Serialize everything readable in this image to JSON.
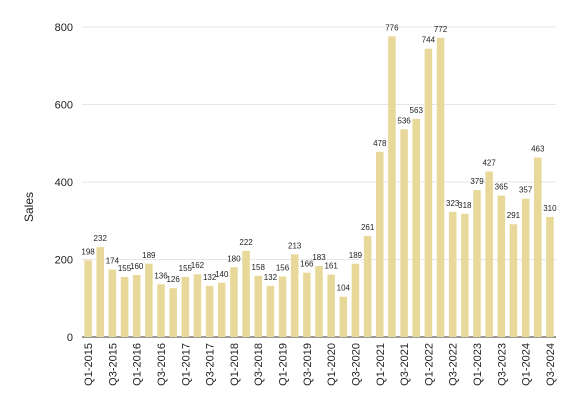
{
  "chart_data": {
    "type": "bar",
    "title": "",
    "xlabel": "",
    "ylabel": "Sales",
    "ylim": [
      0,
      800
    ],
    "yticks": [
      0,
      200,
      400,
      600,
      800
    ],
    "grid": true,
    "bar_color": "#e8d99a",
    "categories": [
      "Q1-2015",
      "Q2-2015",
      "Q3-2015",
      "Q4-2015",
      "Q1-2016",
      "Q2-2016",
      "Q3-2016",
      "Q4-2016",
      "Q1-2017",
      "Q2-2017",
      "Q3-2017",
      "Q4-2017",
      "Q1-2018",
      "Q2-2018",
      "Q3-2018",
      "Q4-2018",
      "Q1-2019",
      "Q2-2019",
      "Q3-2019",
      "Q4-2019",
      "Q1-2020",
      "Q2-2020",
      "Q3-2020",
      "Q4-2020",
      "Q1-2021",
      "Q2-2021",
      "Q3-2021",
      "Q4-2021",
      "Q1-2022",
      "Q2-2022",
      "Q3-2022",
      "Q4-2022",
      "Q1-2023",
      "Q2-2023",
      "Q3-2023",
      "Q4-2023",
      "Q1-2024",
      "Q2-2024",
      "Q3-2024"
    ],
    "shown_x_ticks": [
      "Q1-2015",
      "Q3-2015",
      "Q1-2016",
      "Q3-2016",
      "Q1-2017",
      "Q3-2017",
      "Q1-2018",
      "Q3-2018",
      "Q1-2019",
      "Q3-2019",
      "Q1-2020",
      "Q3-2020",
      "Q1-2021",
      "Q3-2021",
      "Q1-2022",
      "Q3-2022",
      "Q1-2023",
      "Q3-2023",
      "Q1-2024",
      "Q3-2024"
    ],
    "values": [
      198,
      232,
      174,
      155,
      160,
      189,
      136,
      126,
      155,
      162,
      132,
      140,
      180,
      222,
      158,
      132,
      156,
      213,
      166,
      183,
      161,
      104,
      189,
      261,
      478,
      776,
      536,
      563,
      744,
      772,
      323,
      318,
      379,
      427,
      365,
      291,
      357,
      463,
      310
    ]
  }
}
